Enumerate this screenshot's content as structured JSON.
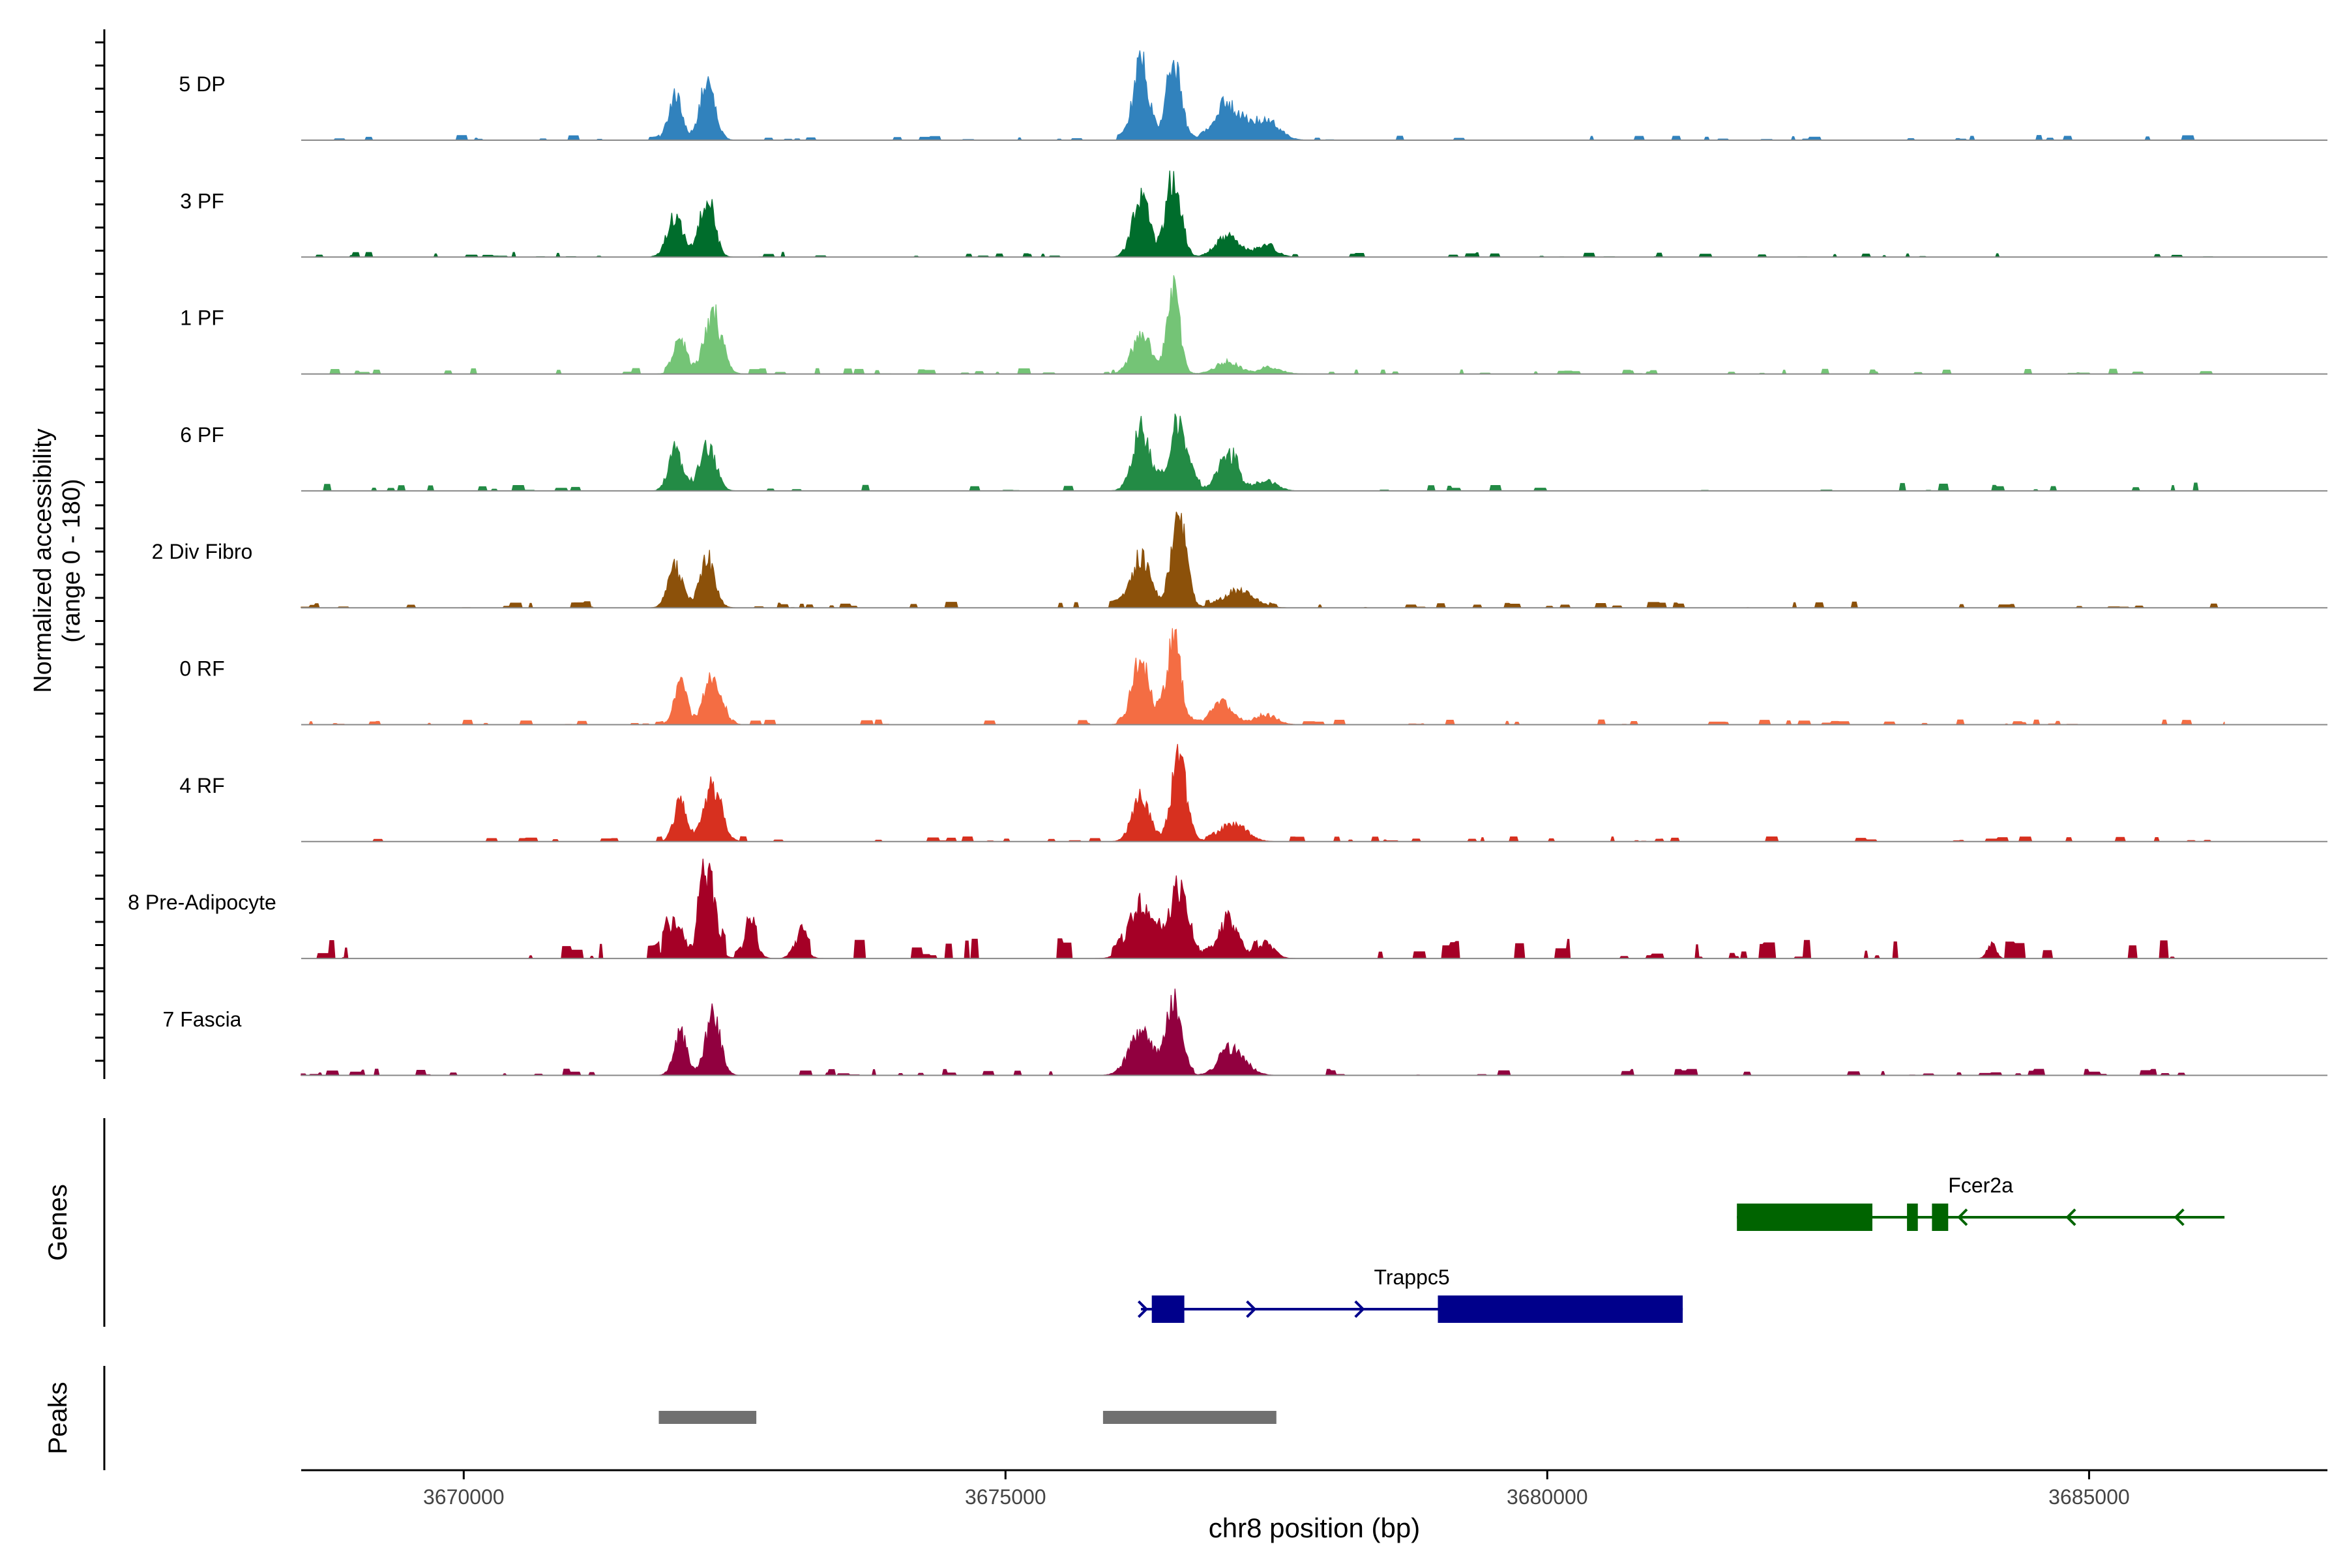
{
  "chart_data": {
    "type": "area",
    "title": "",
    "xlabel": "chr8 position (bp)",
    "ylabel": "Normalized accessibility",
    "ylabel_range": "(range 0 - 180)",
    "xlim": [
      3668500,
      3687200
    ],
    "x_ticks": [
      3670000,
      3675000,
      3680000,
      3685000
    ],
    "x_tick_labels": [
      "3670000",
      "3675000",
      "3680000",
      "3685000"
    ],
    "coverage_range": [
      0,
      180
    ],
    "track_extent": [
      3668500,
      3686250
    ],
    "tracks": [
      {
        "name": "5 DP",
        "color": "#3182bd",
        "seed": 11,
        "peaks": [
          [
            3671950,
            0.45,
            60
          ],
          [
            3672250,
            0.6,
            70
          ],
          [
            3676250,
            0.8,
            70
          ],
          [
            3676550,
            0.75,
            70
          ],
          [
            3677050,
            0.33,
            130
          ],
          [
            3677400,
            0.2,
            120
          ]
        ],
        "noise": 0.012
      },
      {
        "name": "3 PF",
        "color": "#006d2c",
        "seed": 23,
        "peaks": [
          [
            3671950,
            0.42,
            70
          ],
          [
            3672250,
            0.6,
            65
          ],
          [
            3676250,
            0.55,
            80
          ],
          [
            3676550,
            0.78,
            70
          ],
          [
            3677050,
            0.2,
            110
          ],
          [
            3677400,
            0.1,
            100
          ]
        ],
        "noise": 0.012
      },
      {
        "name": "1 PF",
        "color": "#74c476",
        "seed": 37,
        "peaks": [
          [
            3672000,
            0.33,
            60
          ],
          [
            3672300,
            0.58,
            80
          ],
          [
            3676250,
            0.35,
            90
          ],
          [
            3676550,
            0.8,
            60
          ],
          [
            3677050,
            0.12,
            110
          ],
          [
            3677450,
            0.06,
            100
          ]
        ],
        "noise": 0.014
      },
      {
        "name": "6 PF",
        "color": "#238b45",
        "seed": 41,
        "peaks": [
          [
            3671950,
            0.4,
            60
          ],
          [
            3672250,
            0.45,
            75
          ],
          [
            3676250,
            0.6,
            80
          ],
          [
            3676600,
            0.62,
            90
          ],
          [
            3677050,
            0.35,
            90
          ],
          [
            3677400,
            0.1,
            100
          ]
        ],
        "noise": 0.02
      },
      {
        "name": "2 Div Fibro",
        "color": "#8c510a",
        "seed": 53,
        "peaks": [
          [
            3671950,
            0.4,
            65
          ],
          [
            3672250,
            0.48,
            70
          ],
          [
            3676250,
            0.5,
            90
          ],
          [
            3676600,
            0.88,
            70
          ],
          [
            3677150,
            0.17,
            140
          ]
        ],
        "noise": 0.016
      },
      {
        "name": "0 RF",
        "color": "#f46d43",
        "seed": 67,
        "peaks": [
          [
            3672000,
            0.38,
            60
          ],
          [
            3672300,
            0.5,
            80
          ],
          [
            3676250,
            0.65,
            80
          ],
          [
            3676550,
            0.8,
            70
          ],
          [
            3677000,
            0.22,
            100
          ],
          [
            3677400,
            0.1,
            100
          ]
        ],
        "noise": 0.012
      },
      {
        "name": "4 RF",
        "color": "#d7301f",
        "seed": 71,
        "peaks": [
          [
            3672000,
            0.38,
            60
          ],
          [
            3672300,
            0.55,
            80
          ],
          [
            3676250,
            0.45,
            80
          ],
          [
            3676600,
            0.82,
            70
          ],
          [
            3677100,
            0.18,
            120
          ]
        ],
        "noise": 0.012
      },
      {
        "name": "8 Pre-Adipocyte",
        "color": "#a50026",
        "seed": 83,
        "peaks": [
          [
            3671950,
            0.4,
            70
          ],
          [
            3672250,
            0.85,
            70
          ],
          [
            3672650,
            0.25,
            60
          ],
          [
            3673100,
            0.2,
            60
          ],
          [
            3676250,
            0.55,
            110
          ],
          [
            3676600,
            0.7,
            90
          ],
          [
            3677050,
            0.35,
            100
          ],
          [
            3677400,
            0.15,
            80
          ],
          [
            3684100,
            0.15,
            40
          ]
        ],
        "noise": 0.05
      },
      {
        "name": "7 Fascia",
        "color": "#91003f",
        "seed": 97,
        "peaks": [
          [
            3672000,
            0.42,
            60
          ],
          [
            3672300,
            0.58,
            70
          ],
          [
            3676250,
            0.4,
            110
          ],
          [
            3676550,
            0.72,
            70
          ],
          [
            3677100,
            0.25,
            120
          ]
        ],
        "noise": 0.016
      }
    ],
    "genes_label": "Genes",
    "genes": [
      {
        "name": "Fcer2a",
        "color": "#006400",
        "strand": "-",
        "start": 3681750,
        "end": 3686250,
        "exons": [
          [
            3681750,
            3683000,
            "wide"
          ],
          [
            3683320,
            3683420,
            "wide"
          ],
          [
            3683550,
            3683700,
            "wide"
          ]
        ],
        "arrows": [
          3683800,
          3684800,
          3685800
        ]
      },
      {
        "name": "Trappc5",
        "color": "#00008b",
        "strand": "+",
        "start": 3676250,
        "end": 3681250,
        "exons": [
          [
            3676350,
            3676650,
            "wide"
          ],
          [
            3678990,
            3681250,
            "wide"
          ]
        ],
        "arrows": [
          3676300,
          3677300,
          3678300
        ]
      }
    ],
    "peaks_label": "Peaks",
    "peak_color": "#707070",
    "peak_regions": [
      [
        3671800,
        3672700
      ],
      [
        3675900,
        3677500
      ]
    ]
  }
}
